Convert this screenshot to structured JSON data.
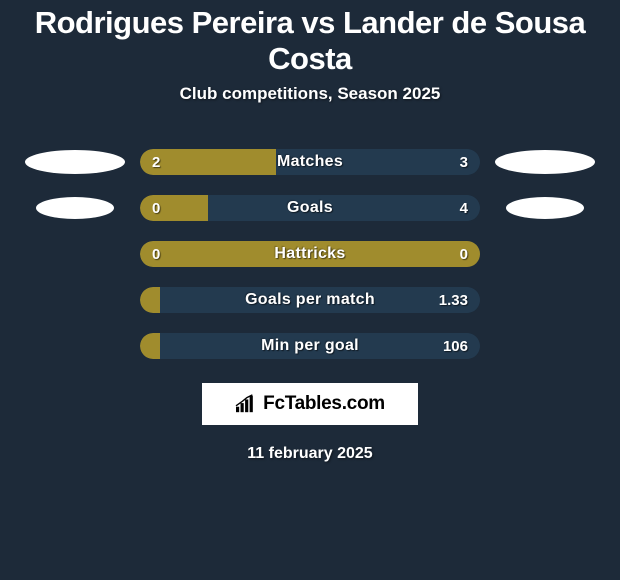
{
  "title": "Rodrigues Pereira vs Lander de Sousa Costa",
  "subtitle": "Club competitions, Season 2025",
  "date": "11 february 2025",
  "colors": {
    "background": "#1d2a39",
    "player1": "#a08c2d",
    "player2": "#233a4f",
    "silhouette": "#ffffff"
  },
  "branding": {
    "text": "FcTables.com",
    "logo_color": "#000000",
    "bg": "#ffffff"
  },
  "stats": [
    {
      "label": "Matches",
      "left_val": "2",
      "right_val": "3",
      "left_pct": 40,
      "right_pct": 60,
      "show_left_sil": true,
      "show_right_sil": true,
      "sil_size": "lg"
    },
    {
      "label": "Goals",
      "left_val": "0",
      "right_val": "4",
      "left_pct": 20,
      "right_pct": 80,
      "show_left_sil": true,
      "show_right_sil": true,
      "sil_size": "sm"
    },
    {
      "label": "Hattricks",
      "left_val": "0",
      "right_val": "0",
      "left_pct": 100,
      "right_pct": 0,
      "show_left_sil": false,
      "show_right_sil": false
    },
    {
      "label": "Goals per match",
      "left_val": "",
      "right_val": "1.33",
      "left_pct": 6,
      "right_pct": 94,
      "show_left_sil": false,
      "show_right_sil": false
    },
    {
      "label": "Min per goal",
      "left_val": "",
      "right_val": "106",
      "left_pct": 6,
      "right_pct": 94,
      "show_left_sil": false,
      "show_right_sil": false
    }
  ]
}
